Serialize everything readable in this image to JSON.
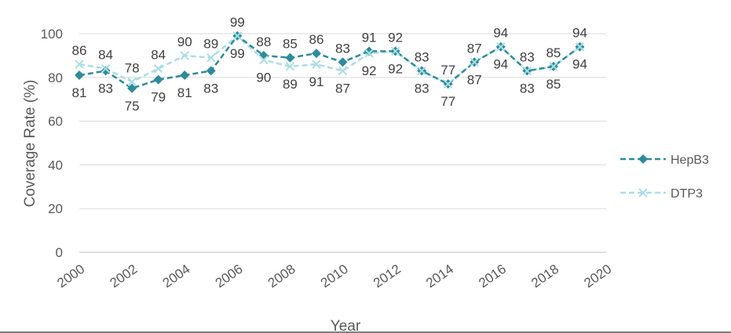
{
  "chart_data": {
    "type": "line",
    "title": "",
    "xlabel": "Year",
    "ylabel": "Coverage Rate (%)",
    "xlim": [
      2000,
      2020
    ],
    "ylim": [
      0,
      100
    ],
    "x_ticks": [
      "2000",
      "2002",
      "2004",
      "2006",
      "2008",
      "2010",
      "2012",
      "2014",
      "2016",
      "2018",
      "2020"
    ],
    "y_ticks": [
      "0",
      "20",
      "40",
      "60",
      "80",
      "100"
    ],
    "grid": true,
    "legend_position": "right",
    "x": [
      2000,
      2001,
      2002,
      2003,
      2004,
      2005,
      2006,
      2007,
      2008,
      2009,
      2010,
      2011,
      2012,
      2013,
      2014,
      2015,
      2016,
      2017,
      2018,
      2019
    ],
    "series": [
      {
        "name": "HepB3",
        "color": "#2e8b9a",
        "marker": "diamond",
        "values": [
          81,
          83,
          75,
          79,
          81,
          83,
          99,
          90,
          89,
          91,
          87,
          92,
          92,
          83,
          77,
          87,
          94,
          83,
          85,
          94
        ]
      },
      {
        "name": "DTP3",
        "color": "#a9dde6",
        "marker": "x",
        "values": [
          86,
          84,
          78,
          84,
          90,
          89,
          99,
          88,
          85,
          86,
          83,
          91,
          92,
          83,
          77,
          87,
          94,
          83,
          85,
          94
        ]
      }
    ]
  }
}
